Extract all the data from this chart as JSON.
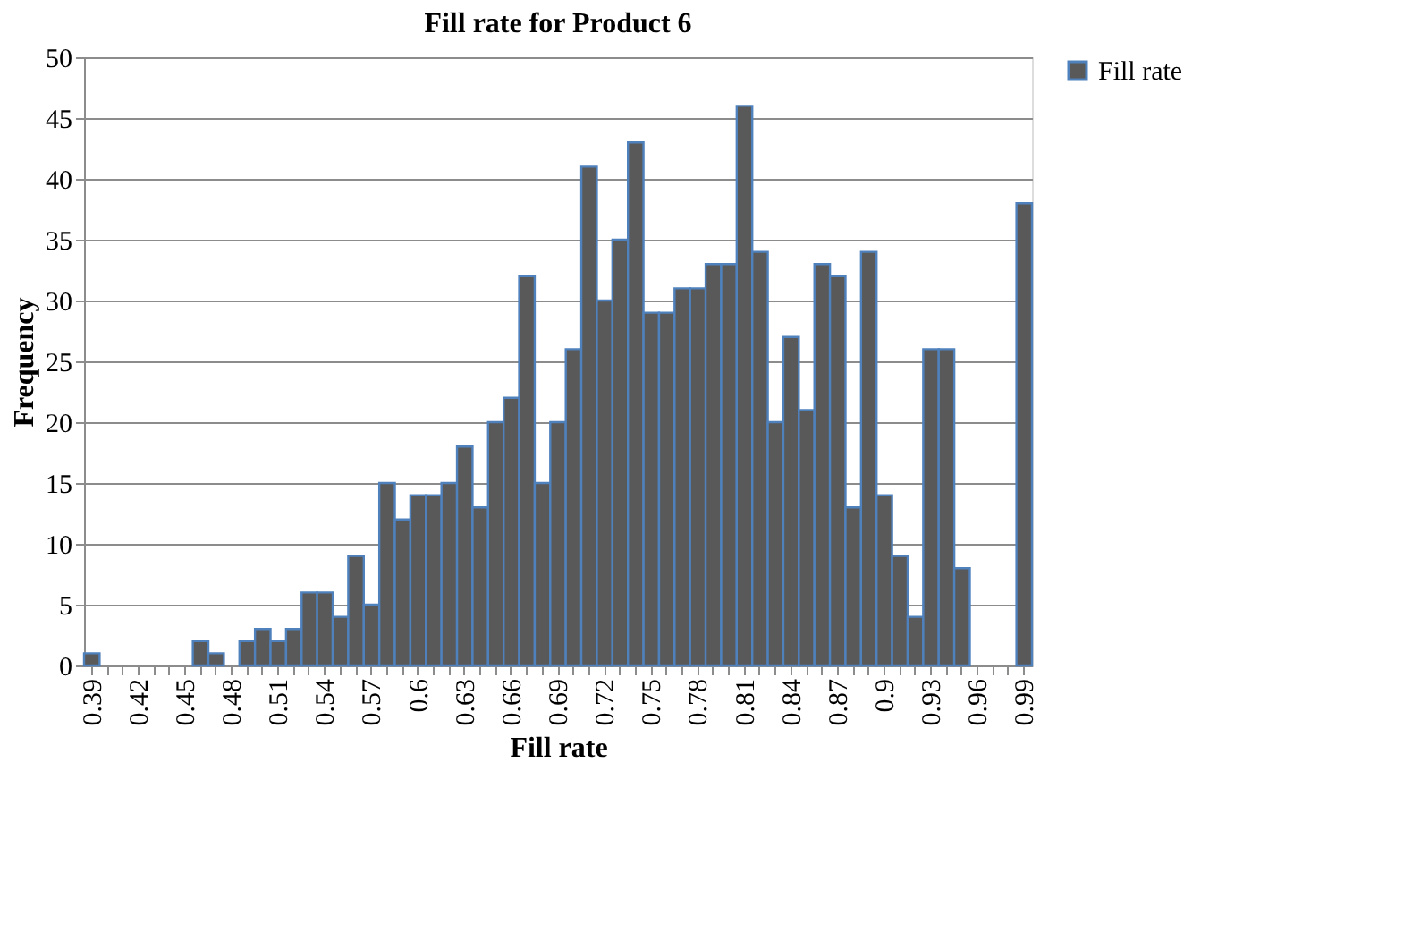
{
  "chart_data": {
    "type": "bar",
    "title": "Fill rate for Product 6",
    "xlabel": "Fill rate",
    "ylabel": "Frequency",
    "categories": [
      "0.39",
      null,
      null,
      "0.42",
      null,
      null,
      "0.45",
      null,
      null,
      "0.48",
      null,
      null,
      "0.51",
      null,
      null,
      "0.54",
      null,
      null,
      "0.57",
      null,
      null,
      "0.6",
      null,
      null,
      "0.63",
      null,
      null,
      "0.66",
      null,
      null,
      "0.69",
      null,
      null,
      "0.72",
      null,
      null,
      "0.75",
      null,
      null,
      "0.78",
      null,
      null,
      "0.81",
      null,
      null,
      "0.84",
      null,
      null,
      "0.87",
      null,
      null,
      "0.9",
      null,
      null,
      "0.93",
      null,
      null,
      "0.96",
      null,
      null,
      "0.99"
    ],
    "series": [
      {
        "name": "Fill rate",
        "color": "#595959",
        "values": [
          1,
          0,
          0,
          0,
          0,
          0,
          0,
          2,
          1,
          0,
          2,
          3,
          2,
          3,
          6,
          6,
          4,
          9,
          5,
          15,
          12,
          14,
          14,
          15,
          18,
          13,
          20,
          22,
          32,
          15,
          20,
          26,
          41,
          30,
          35,
          43,
          29,
          29,
          31,
          31,
          33,
          33,
          46,
          34,
          20,
          27,
          21,
          33,
          32,
          13,
          34,
          14,
          9,
          4,
          26,
          26,
          8,
          0,
          0,
          0,
          38
        ]
      }
    ],
    "ylim": [
      0,
      50
    ],
    "yticks": [
      0,
      5,
      10,
      15,
      20,
      25,
      30,
      35,
      40,
      45,
      50
    ],
    "grid": "y",
    "legend": "right"
  }
}
